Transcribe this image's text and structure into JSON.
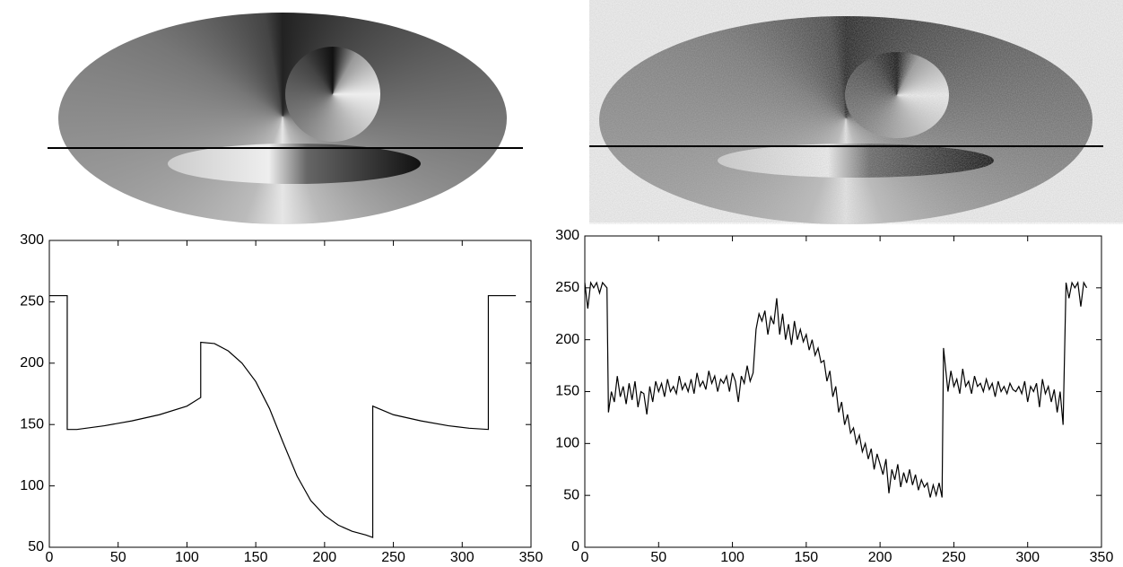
{
  "chart_data": [
    {
      "type": "line",
      "x": [
        0,
        13,
        13,
        20,
        40,
        60,
        80,
        100,
        110,
        110,
        120,
        130,
        140,
        150,
        160,
        170,
        180,
        190,
        200,
        210,
        220,
        230,
        235,
        235,
        250,
        270,
        290,
        305,
        319,
        319,
        339
      ],
      "series": [
        {
          "color": "#000000",
          "values": [
            255,
            255,
            146,
            146,
            149,
            153,
            158,
            165,
            172,
            217,
            216,
            210,
            200,
            185,
            163,
            135,
            108,
            88,
            76,
            68,
            63,
            60,
            58,
            165,
            158,
            153,
            149,
            147,
            146,
            255,
            255
          ]
        }
      ],
      "xlim": [
        0,
        350
      ],
      "xticks": [
        0,
        50,
        100,
        150,
        200,
        250,
        300,
        350
      ],
      "ylim": [
        50,
        300
      ],
      "yticks": [
        50,
        100,
        150,
        200,
        250,
        300
      ]
    },
    {
      "type": "line",
      "x": [
        0,
        2,
        4,
        6,
        8,
        10,
        12,
        15,
        16,
        18,
        20,
        22,
        24,
        26,
        28,
        30,
        32,
        34,
        36,
        38,
        40,
        42,
        44,
        46,
        48,
        50,
        52,
        54,
        56,
        58,
        60,
        62,
        64,
        66,
        68,
        70,
        72,
        74,
        76,
        78,
        80,
        82,
        84,
        86,
        88,
        90,
        92,
        94,
        96,
        98,
        100,
        102,
        104,
        106,
        108,
        110,
        112,
        114,
        116,
        118,
        120,
        122,
        124,
        126,
        128,
        130,
        132,
        134,
        136,
        138,
        140,
        142,
        144,
        146,
        148,
        150,
        152,
        154,
        156,
        158,
        160,
        162,
        164,
        166,
        168,
        170,
        172,
        174,
        176,
        178,
        180,
        182,
        184,
        186,
        188,
        190,
        192,
        194,
        196,
        198,
        200,
        202,
        204,
        206,
        208,
        210,
        212,
        214,
        216,
        218,
        220,
        222,
        224,
        226,
        228,
        230,
        232,
        234,
        236,
        238,
        240,
        242,
        243,
        246,
        248,
        250,
        252,
        254,
        256,
        258,
        260,
        262,
        264,
        266,
        268,
        270,
        272,
        274,
        276,
        278,
        280,
        282,
        284,
        286,
        288,
        290,
        292,
        294,
        296,
        298,
        300,
        302,
        304,
        306,
        308,
        310,
        312,
        314,
        316,
        318,
        320,
        322,
        324,
        326,
        328,
        330,
        332,
        334,
        336,
        338,
        340
      ],
      "series": [
        {
          "color": "#000000",
          "values": [
            255,
            230,
            255,
            250,
            255,
            245,
            255,
            250,
            130,
            150,
            140,
            165,
            145,
            155,
            138,
            158,
            142,
            160,
            135,
            150,
            148,
            128,
            155,
            140,
            160,
            150,
            158,
            145,
            162,
            150,
            155,
            148,
            165,
            152,
            158,
            150,
            162,
            148,
            168,
            155,
            160,
            152,
            170,
            158,
            165,
            150,
            162,
            158,
            165,
            150,
            168,
            160,
            140,
            165,
            158,
            175,
            160,
            168,
            210,
            225,
            218,
            228,
            205,
            222,
            215,
            240,
            205,
            225,
            200,
            215,
            195,
            218,
            200,
            210,
            198,
            205,
            190,
            200,
            185,
            192,
            178,
            180,
            160,
            170,
            145,
            155,
            130,
            140,
            118,
            128,
            110,
            115,
            100,
            108,
            92,
            100,
            85,
            95,
            75,
            90,
            80,
            70,
            85,
            52,
            75,
            65,
            80,
            58,
            72,
            62,
            75,
            60,
            70,
            55,
            65,
            58,
            62,
            48,
            60,
            50,
            62,
            48,
            192,
            150,
            170,
            155,
            162,
            148,
            172,
            155,
            160,
            148,
            165,
            155,
            158,
            150,
            162,
            152,
            158,
            145,
            160,
            150,
            155,
            148,
            158,
            152,
            150,
            155,
            148,
            160,
            140,
            155,
            150,
            158,
            135,
            162,
            148,
            155,
            140,
            152,
            130,
            150,
            118,
            255,
            240,
            255,
            250,
            255,
            232,
            255,
            250
          ]
        }
      ],
      "xlim": [
        0,
        350
      ],
      "xticks": [
        0,
        50,
        100,
        150,
        200,
        250,
        300,
        350
      ],
      "ylim": [
        0,
        300
      ],
      "yticks": [
        0,
        50,
        100,
        150,
        200,
        250,
        300
      ]
    }
  ]
}
